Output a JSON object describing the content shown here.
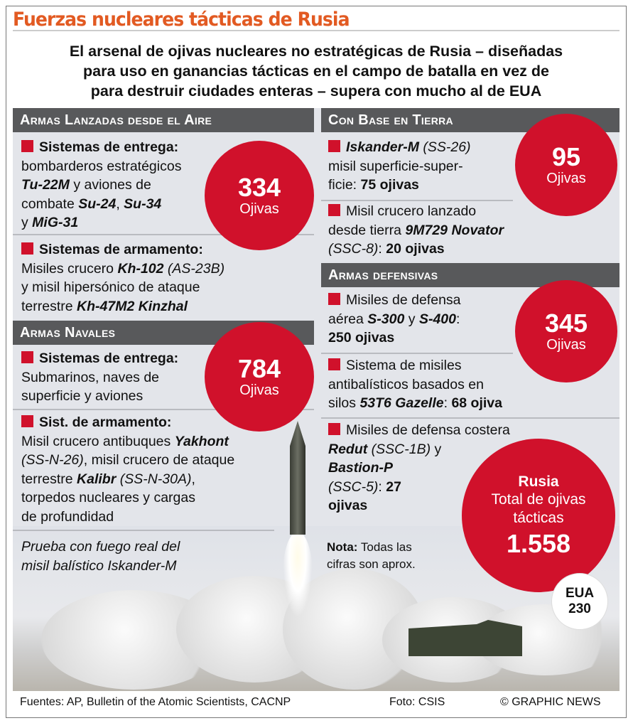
{
  "title": "Fuerzas nucleares tácticas de Rusia",
  "subtitle": [
    "El arsenal de ojivas nucleares no estratégicas de Rusia – diseñadas",
    "para uso en ganancias tácticas en el campo de batalla en vez de",
    "para destruir ciudades enteras – supera con mucho al de EUA"
  ],
  "colors": {
    "title": "#e25a22",
    "accent": "#d0112b",
    "header": "#58595b",
    "panel": "#e3e5ea"
  },
  "sections": {
    "air": {
      "header": "Armas Lanzadas desde el Aire",
      "circle": {
        "value": "334",
        "label": "Ojivas"
      }
    },
    "naval": {
      "header": "Armas Navales",
      "circle": {
        "value": "784",
        "label": "Ojivas"
      }
    },
    "land": {
      "header": "Con Base en Tierra",
      "circle": {
        "value": "95",
        "label": "Ojivas"
      }
    },
    "defensive": {
      "header": "Armas defensivas",
      "circle": {
        "value": "345",
        "label": "Ojivas"
      }
    }
  },
  "items": [
    {
      "lines": [
        [
          {
            "t": "Sistemas de entrega:",
            "s": "b"
          }
        ],
        [
          {
            "t": "bombarderos estratégicos",
            "s": ""
          }
        ],
        [
          {
            "t": "Tu-22M",
            "s": "bi"
          },
          {
            "t": " y aviones de",
            "s": ""
          }
        ],
        [
          {
            "t": "combate ",
            "s": ""
          },
          {
            "t": "Su-24",
            "s": "bi"
          },
          {
            "t": ", ",
            "s": ""
          },
          {
            "t": "Su-34",
            "s": "bi"
          }
        ],
        [
          {
            "t": "y ",
            "s": ""
          },
          {
            "t": "MiG-31",
            "s": "bi"
          }
        ]
      ]
    },
    {
      "lines": [
        [
          {
            "t": "Sistemas de armamento:",
            "s": "b"
          }
        ],
        [
          {
            "t": "Misiles crucero ",
            "s": ""
          },
          {
            "t": "Kh-102",
            "s": "bi"
          },
          {
            "t": " (AS-23B)",
            "s": "i"
          }
        ],
        [
          {
            "t": "y misil hipersónico de ataque",
            "s": ""
          }
        ],
        [
          {
            "t": "terrestre ",
            "s": ""
          },
          {
            "t": "Kh-47M2 Kinzhal",
            "s": "bi"
          }
        ]
      ]
    },
    {
      "lines": [
        [
          {
            "t": "Sistemas de entrega:",
            "s": "b"
          }
        ],
        [
          {
            "t": "Submarinos, naves de",
            "s": ""
          }
        ],
        [
          {
            "t": "superficie y aviones",
            "s": ""
          }
        ]
      ]
    },
    {
      "lines": [
        [
          {
            "t": "Sist. de armamento:",
            "s": "b"
          }
        ],
        [
          {
            "t": "Misil crucero antibuques ",
            "s": ""
          },
          {
            "t": "Yakhont",
            "s": "bi"
          }
        ],
        [
          {
            "t": "(SS-N-26)",
            "s": "i"
          },
          {
            "t": ", misil crucero de ataque",
            "s": ""
          }
        ],
        [
          {
            "t": "terrestre ",
            "s": ""
          },
          {
            "t": "Kalibr",
            "s": "bi"
          },
          {
            "t": " (SS-N-30A)",
            "s": "i"
          },
          {
            "t": ",",
            "s": ""
          }
        ],
        [
          {
            "t": "torpedos nucleares y cargas",
            "s": ""
          }
        ],
        [
          {
            "t": "de profundidad",
            "s": ""
          }
        ]
      ]
    },
    {
      "lines": [
        [
          {
            "t": "Iskander-M",
            "s": "bi"
          },
          {
            "t": " (SS-26)",
            "s": "i"
          }
        ],
        [
          {
            "t": "misil superficie-super-",
            "s": ""
          }
        ],
        [
          {
            "t": "ficie: ",
            "s": ""
          },
          {
            "t": "75 ojivas",
            "s": "b"
          }
        ]
      ]
    },
    {
      "lines": [
        [
          {
            "t": "Misil crucero lanzado",
            "s": ""
          }
        ],
        [
          {
            "t": "desde tierra ",
            "s": ""
          },
          {
            "t": "9M729 Novator",
            "s": "bi"
          }
        ],
        [
          {
            "t": "(SSC-8)",
            "s": "i"
          },
          {
            "t": ": ",
            "s": ""
          },
          {
            "t": "20 ojivas",
            "s": "b"
          }
        ]
      ]
    },
    {
      "lines": [
        [
          {
            "t": "Misiles de defensa",
            "s": ""
          }
        ],
        [
          {
            "t": "aérea ",
            "s": ""
          },
          {
            "t": "S-300",
            "s": "bi"
          },
          {
            "t": " y ",
            "s": ""
          },
          {
            "t": "S-400",
            "s": "bi"
          },
          {
            "t": ":",
            "s": ""
          }
        ],
        [
          {
            "t": "250 ojivas",
            "s": "b"
          }
        ]
      ]
    },
    {
      "lines": [
        [
          {
            "t": "Sistema de misiles",
            "s": ""
          }
        ],
        [
          {
            "t": "antibalísticos basados en",
            "s": ""
          }
        ],
        [
          {
            "t": "silos ",
            "s": ""
          },
          {
            "t": "53T6 Gazelle",
            "s": "bi"
          },
          {
            "t": ": ",
            "s": ""
          },
          {
            "t": "68 ojiva",
            "s": "b"
          }
        ]
      ]
    },
    {
      "lines": [
        [
          {
            "t": "Misiles de defensa costera",
            "s": ""
          }
        ],
        [
          {
            "t": "Redut",
            "s": "bi"
          },
          {
            "t": " (SSC-1B)",
            "s": "i"
          },
          {
            "t": " y",
            "s": ""
          }
        ],
        [
          {
            "t": "Bastion-P",
            "s": "bi"
          }
        ],
        [
          {
            "t": "(SSC-5)",
            "s": "i"
          },
          {
            "t": ": ",
            "s": ""
          },
          {
            "t": "27",
            "s": "b"
          }
        ],
        [
          {
            "t": "ojivas",
            "s": "b"
          }
        ]
      ]
    }
  ],
  "total": {
    "country": "Rusia",
    "label": "Total de ojivas tácticas",
    "value": "1.558"
  },
  "usa": {
    "label": "EUA",
    "value": "230"
  },
  "caption": [
    "Prueba con fuego real del",
    "misil balístico Iskander-M"
  ],
  "note": {
    "label": "Nota:",
    "text": " Todas las",
    "line2": "cifras son aprox."
  },
  "footer": {
    "sources": "Fuentes: AP, Bulletin of the Atomic Scientists, CACNP",
    "photo": "Foto: CSIS",
    "credit": "© GRAPHIC NEWS"
  }
}
